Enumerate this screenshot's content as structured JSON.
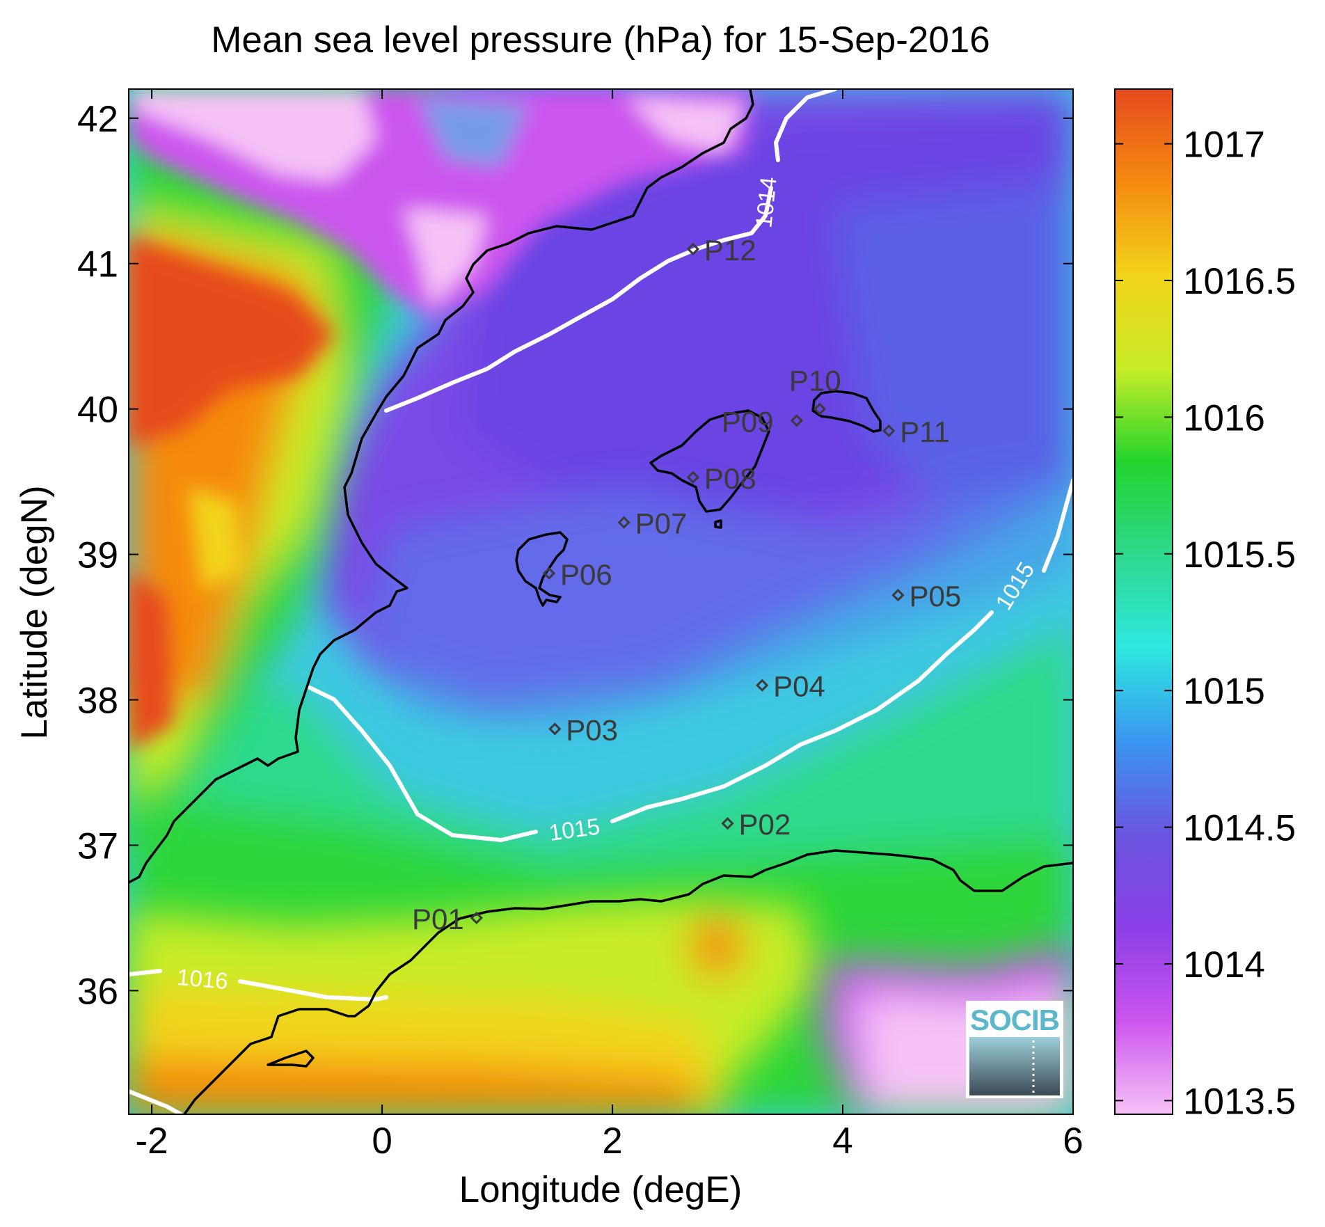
{
  "title": "Mean sea level pressure (hPa) for 15-Sep-2016",
  "xlabel": "Longitude (degE)",
  "ylabel": "Latitude (degN)",
  "x_ticks": [
    {
      "value": -2,
      "label": "-2"
    },
    {
      "value": 0,
      "label": "0"
    },
    {
      "value": 2,
      "label": "2"
    },
    {
      "value": 4,
      "label": "4"
    },
    {
      "value": 6,
      "label": "6"
    }
  ],
  "y_ticks": [
    {
      "value": 36,
      "label": "36"
    },
    {
      "value": 37,
      "label": "37"
    },
    {
      "value": 38,
      "label": "38"
    },
    {
      "value": 39,
      "label": "39"
    },
    {
      "value": 40,
      "label": "40"
    },
    {
      "value": 41,
      "label": "41"
    },
    {
      "value": 42,
      "label": "42"
    }
  ],
  "colorbar": {
    "min": 1013.45,
    "max": 1017.2,
    "ticks": [
      {
        "value": 1013.5,
        "label": "1013.5"
      },
      {
        "value": 1014,
        "label": "1014"
      },
      {
        "value": 1014.5,
        "label": "1014.5"
      },
      {
        "value": 1015,
        "label": "1015"
      },
      {
        "value": 1015.5,
        "label": "1015.5"
      },
      {
        "value": 1016,
        "label": "1016"
      },
      {
        "value": 1016.5,
        "label": "1016.5"
      },
      {
        "value": 1017,
        "label": "1017"
      }
    ],
    "colors": [
      "#f6c2f6",
      "#cc55ee",
      "#8b3fe6",
      "#6a55e0",
      "#3a95f0",
      "#2ee8e0",
      "#2ed88e",
      "#22d42c",
      "#c8ec28",
      "#f2d41a",
      "#f58a10",
      "#e64b1e"
    ]
  },
  "contour_labels": [
    "1014",
    "1015",
    "1015",
    "1016"
  ],
  "stations": [
    {
      "id": "P01",
      "lon": 0.82,
      "lat": 36.5
    },
    {
      "id": "P02",
      "lon": 3.0,
      "lat": 37.15
    },
    {
      "id": "P03",
      "lon": 1.5,
      "lat": 37.8
    },
    {
      "id": "P04",
      "lon": 3.3,
      "lat": 38.1
    },
    {
      "id": "P05",
      "lon": 4.48,
      "lat": 38.72
    },
    {
      "id": "P06",
      "lon": 1.45,
      "lat": 38.87
    },
    {
      "id": "P07",
      "lon": 2.1,
      "lat": 39.22
    },
    {
      "id": "P08",
      "lon": 2.7,
      "lat": 39.53
    },
    {
      "id": "P09",
      "lon": 3.6,
      "lat": 39.92
    },
    {
      "id": "P10",
      "lon": 3.8,
      "lat": 40.0
    },
    {
      "id": "P11",
      "lon": 4.4,
      "lat": 39.85
    },
    {
      "id": "P12",
      "lon": 2.7,
      "lat": 41.1
    }
  ],
  "logo": {
    "text": "SOCIB",
    "color": "#5bb8cc"
  },
  "colors": {
    "coastline": "#000000",
    "contour": "#ffffff",
    "station": "#3a3a3a"
  }
}
